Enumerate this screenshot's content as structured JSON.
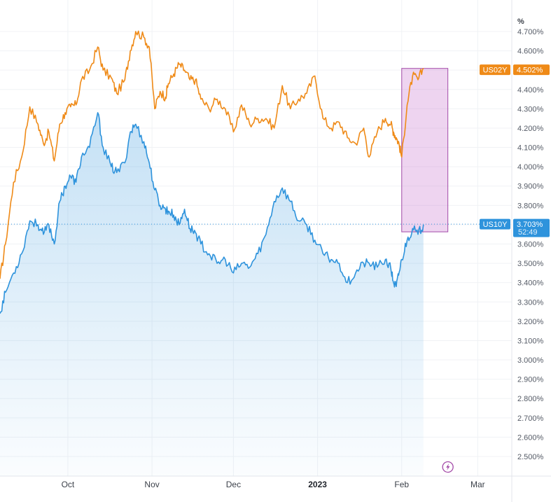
{
  "chart_data": {
    "type": "line",
    "y_unit": "%",
    "ylim": [
      2.45,
      4.74
    ],
    "y_ticks": [
      "4.700%",
      "4.600%",
      "4.500%",
      "4.400%",
      "4.300%",
      "4.200%",
      "4.100%",
      "4.000%",
      "3.900%",
      "3.800%",
      "3.700%",
      "3.600%",
      "3.500%",
      "3.400%",
      "3.300%",
      "3.200%",
      "3.100%",
      "3.000%",
      "2.900%",
      "2.800%",
      "2.700%",
      "2.600%",
      "2.500%"
    ],
    "x_ticks": [
      {
        "label": "Oct",
        "day": 30,
        "bold": false
      },
      {
        "label": "Nov",
        "day": 61,
        "bold": false
      },
      {
        "label": "Dec",
        "day": 91,
        "bold": false
      },
      {
        "label": "2023",
        "day": 122,
        "bold": true
      },
      {
        "label": "Feb",
        "day": 153,
        "bold": false
      },
      {
        "label": "Mar",
        "day": 181,
        "bold": false
      }
    ],
    "x_domain_days": [
      5,
      208
    ],
    "series": [
      {
        "name": "US02Y",
        "color": "#ef8a17",
        "last_value_label": "4.502%",
        "x": [
          5,
          7,
          10,
          13,
          16,
          19,
          21,
          23,
          25,
          27,
          29,
          31,
          33,
          35,
          38,
          41,
          43,
          46,
          48,
          51,
          53,
          55,
          58,
          60,
          62,
          64,
          66,
          67,
          69,
          71,
          73,
          75,
          77,
          79,
          82,
          85,
          88,
          91,
          94,
          97,
          100,
          103,
          106,
          109,
          112,
          115,
          118,
          121,
          124,
          127,
          130,
          133,
          136,
          139,
          141,
          144,
          147,
          149,
          150,
          151,
          152,
          153,
          155,
          157,
          159,
          161
        ],
        "values": [
          3.42,
          3.6,
          3.92,
          4.05,
          4.31,
          4.22,
          4.12,
          4.18,
          4.03,
          4.22,
          4.28,
          4.31,
          4.32,
          4.45,
          4.5,
          4.62,
          4.5,
          4.46,
          4.38,
          4.45,
          4.6,
          4.7,
          4.67,
          4.62,
          4.3,
          4.39,
          4.36,
          4.43,
          4.48,
          4.53,
          4.5,
          4.45,
          4.45,
          4.35,
          4.3,
          4.35,
          4.3,
          4.18,
          4.32,
          4.22,
          4.25,
          4.25,
          4.2,
          4.42,
          4.3,
          4.35,
          4.38,
          4.47,
          4.25,
          4.2,
          4.23,
          4.15,
          4.12,
          4.2,
          4.05,
          4.18,
          4.25,
          4.22,
          4.18,
          4.15,
          4.12,
          4.05,
          4.32,
          4.47,
          4.45,
          4.51
        ]
      },
      {
        "name": "US10Y",
        "color": "#2e93dc",
        "last_value_label": "3.703%",
        "countdown_label": "52:49",
        "x": [
          5,
          7,
          10,
          13,
          16,
          19,
          21,
          23,
          25,
          27,
          29,
          31,
          33,
          35,
          38,
          41,
          43,
          46,
          48,
          51,
          53,
          55,
          58,
          60,
          62,
          64,
          66,
          67,
          69,
          71,
          73,
          75,
          77,
          79,
          82,
          85,
          88,
          91,
          94,
          97,
          100,
          103,
          106,
          109,
          112,
          115,
          118,
          121,
          124,
          127,
          130,
          133,
          136,
          139,
          141,
          144,
          147,
          149,
          150,
          151,
          152,
          153,
          155,
          157,
          159,
          161
        ],
        "values": [
          3.24,
          3.35,
          3.45,
          3.55,
          3.72,
          3.7,
          3.65,
          3.7,
          3.6,
          3.82,
          3.9,
          3.95,
          3.92,
          4.05,
          4.1,
          4.28,
          4.1,
          4.0,
          3.97,
          4.02,
          4.18,
          4.22,
          4.13,
          4.02,
          3.88,
          3.8,
          3.78,
          3.77,
          3.75,
          3.7,
          3.78,
          3.68,
          3.66,
          3.6,
          3.55,
          3.5,
          3.52,
          3.45,
          3.5,
          3.48,
          3.55,
          3.65,
          3.82,
          3.89,
          3.82,
          3.72,
          3.7,
          3.62,
          3.55,
          3.52,
          3.5,
          3.4,
          3.45,
          3.5,
          3.5,
          3.48,
          3.52,
          3.47,
          3.4,
          3.38,
          3.45,
          3.52,
          3.62,
          3.68,
          3.65,
          3.7
        ]
      }
    ],
    "annotations": [
      {
        "type": "highlight-box",
        "color": "#c978cf",
        "x_range": [
          153,
          170
        ],
        "y_range": [
          3.663,
          4.509
        ]
      },
      {
        "type": "horizontal-dotted-line",
        "series": "US10Y",
        "value": 3.703
      }
    ]
  },
  "footer": {
    "flash_icon": "lightning-icon"
  }
}
